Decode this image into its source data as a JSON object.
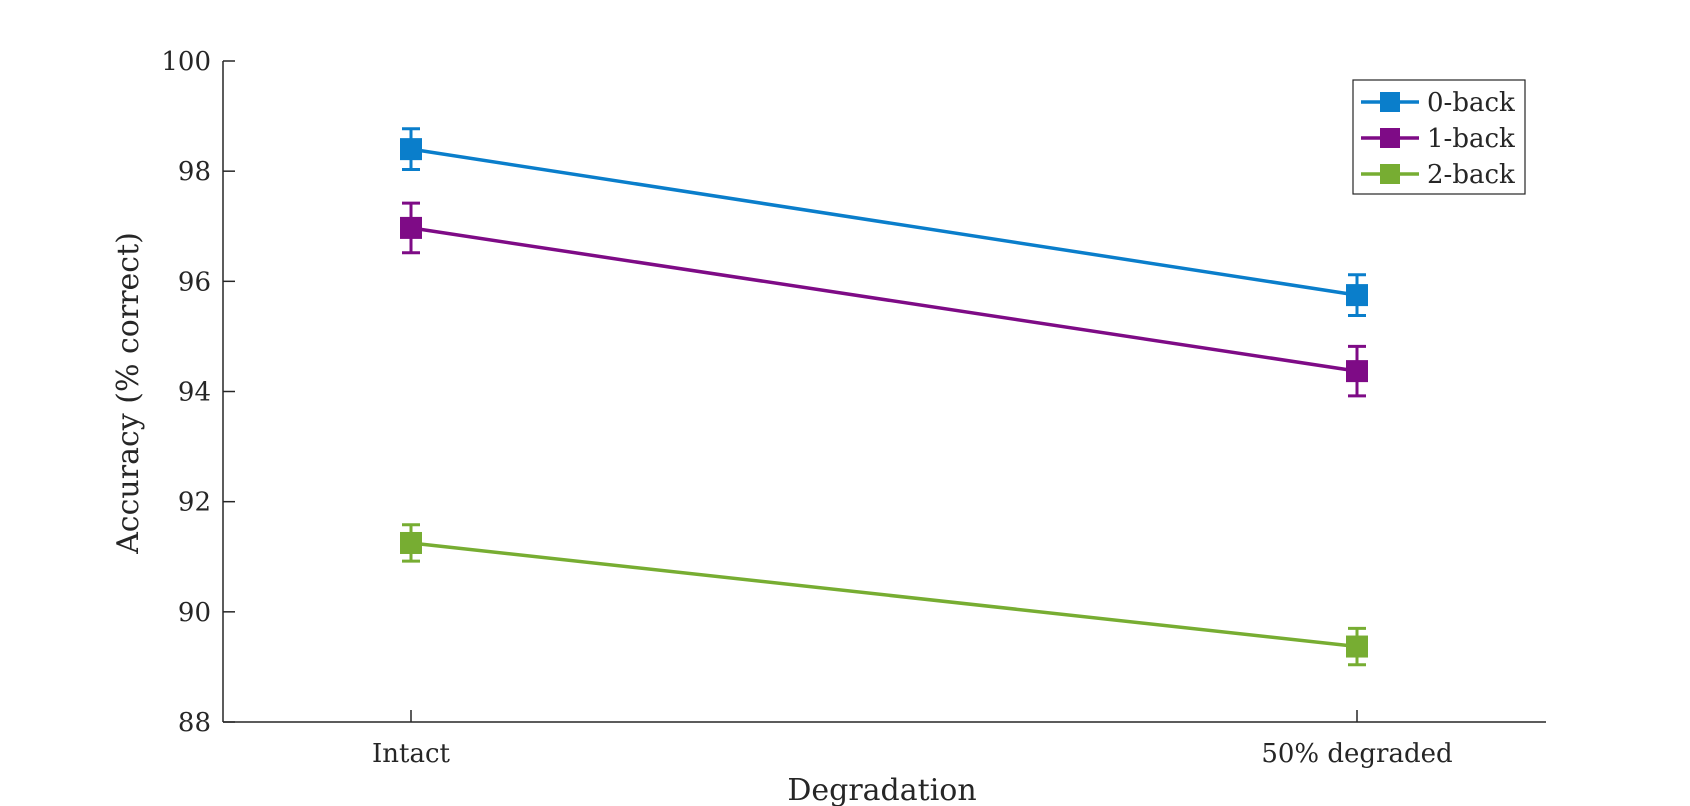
{
  "chart_data": {
    "type": "line",
    "categories": [
      "Intact",
      "50% degraded"
    ],
    "xlabel": "Degradation",
    "ylabel": "Accuracy (% correct)",
    "ylim": [
      88,
      100
    ],
    "yticks": [
      "88",
      "90",
      "92",
      "94",
      "96",
      "98",
      "100"
    ],
    "grid": false,
    "legend_position": "top-right",
    "series": [
      {
        "name": "0-back",
        "color": "#0a7ecb",
        "values": [
          98.4,
          95.75
        ],
        "err": [
          0.37,
          0.37
        ]
      },
      {
        "name": "1-back",
        "color": "#7e0b86",
        "values": [
          96.97,
          94.37
        ],
        "err": [
          0.45,
          0.45
        ]
      },
      {
        "name": "2-back",
        "color": "#77ad32",
        "values": [
          91.25,
          89.37
        ],
        "err": [
          0.33,
          0.33
        ]
      }
    ]
  }
}
